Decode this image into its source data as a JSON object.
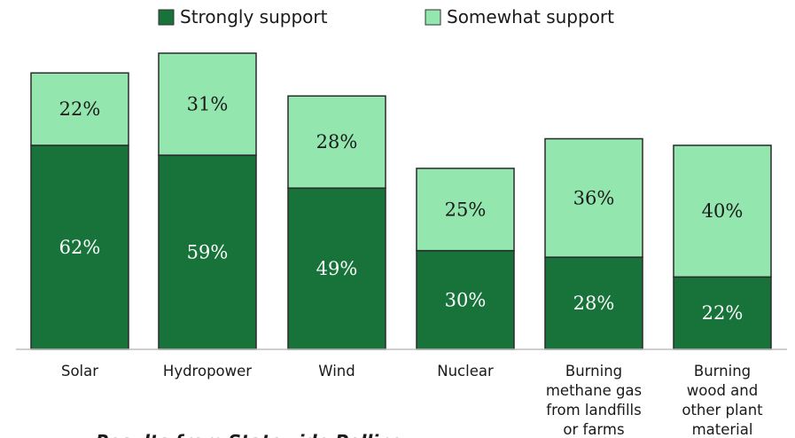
{
  "chart_data": {
    "type": "bar",
    "stacked": true,
    "categories": [
      [
        "Solar"
      ],
      [
        "Hydropower"
      ],
      [
        "Wind"
      ],
      [
        "Nuclear"
      ],
      [
        "Burning",
        "methane gas",
        "from landfills",
        "or farms"
      ],
      [
        "Burning",
        "wood and",
        "other plant",
        "material"
      ]
    ],
    "series": [
      {
        "name": "Strongly support",
        "values": [
          62,
          59,
          49,
          30,
          28,
          22
        ],
        "labels": [
          "62%",
          "59%",
          "49%",
          "30%",
          "28%",
          "22%"
        ],
        "color": "#17733A",
        "label_color": "#ffffff"
      },
      {
        "name": "Somewhat support",
        "values": [
          22,
          31,
          28,
          25,
          36,
          40
        ],
        "labels": [
          "22%",
          "31%",
          "28%",
          "25%",
          "36%",
          "40%"
        ],
        "color": "#92E6AE",
        "label_color": "#1a1a1a"
      }
    ],
    "legend_position": "top-center",
    "grid": false,
    "ylim": [
      0,
      90
    ],
    "caption": "Results from Statewide Polling"
  }
}
